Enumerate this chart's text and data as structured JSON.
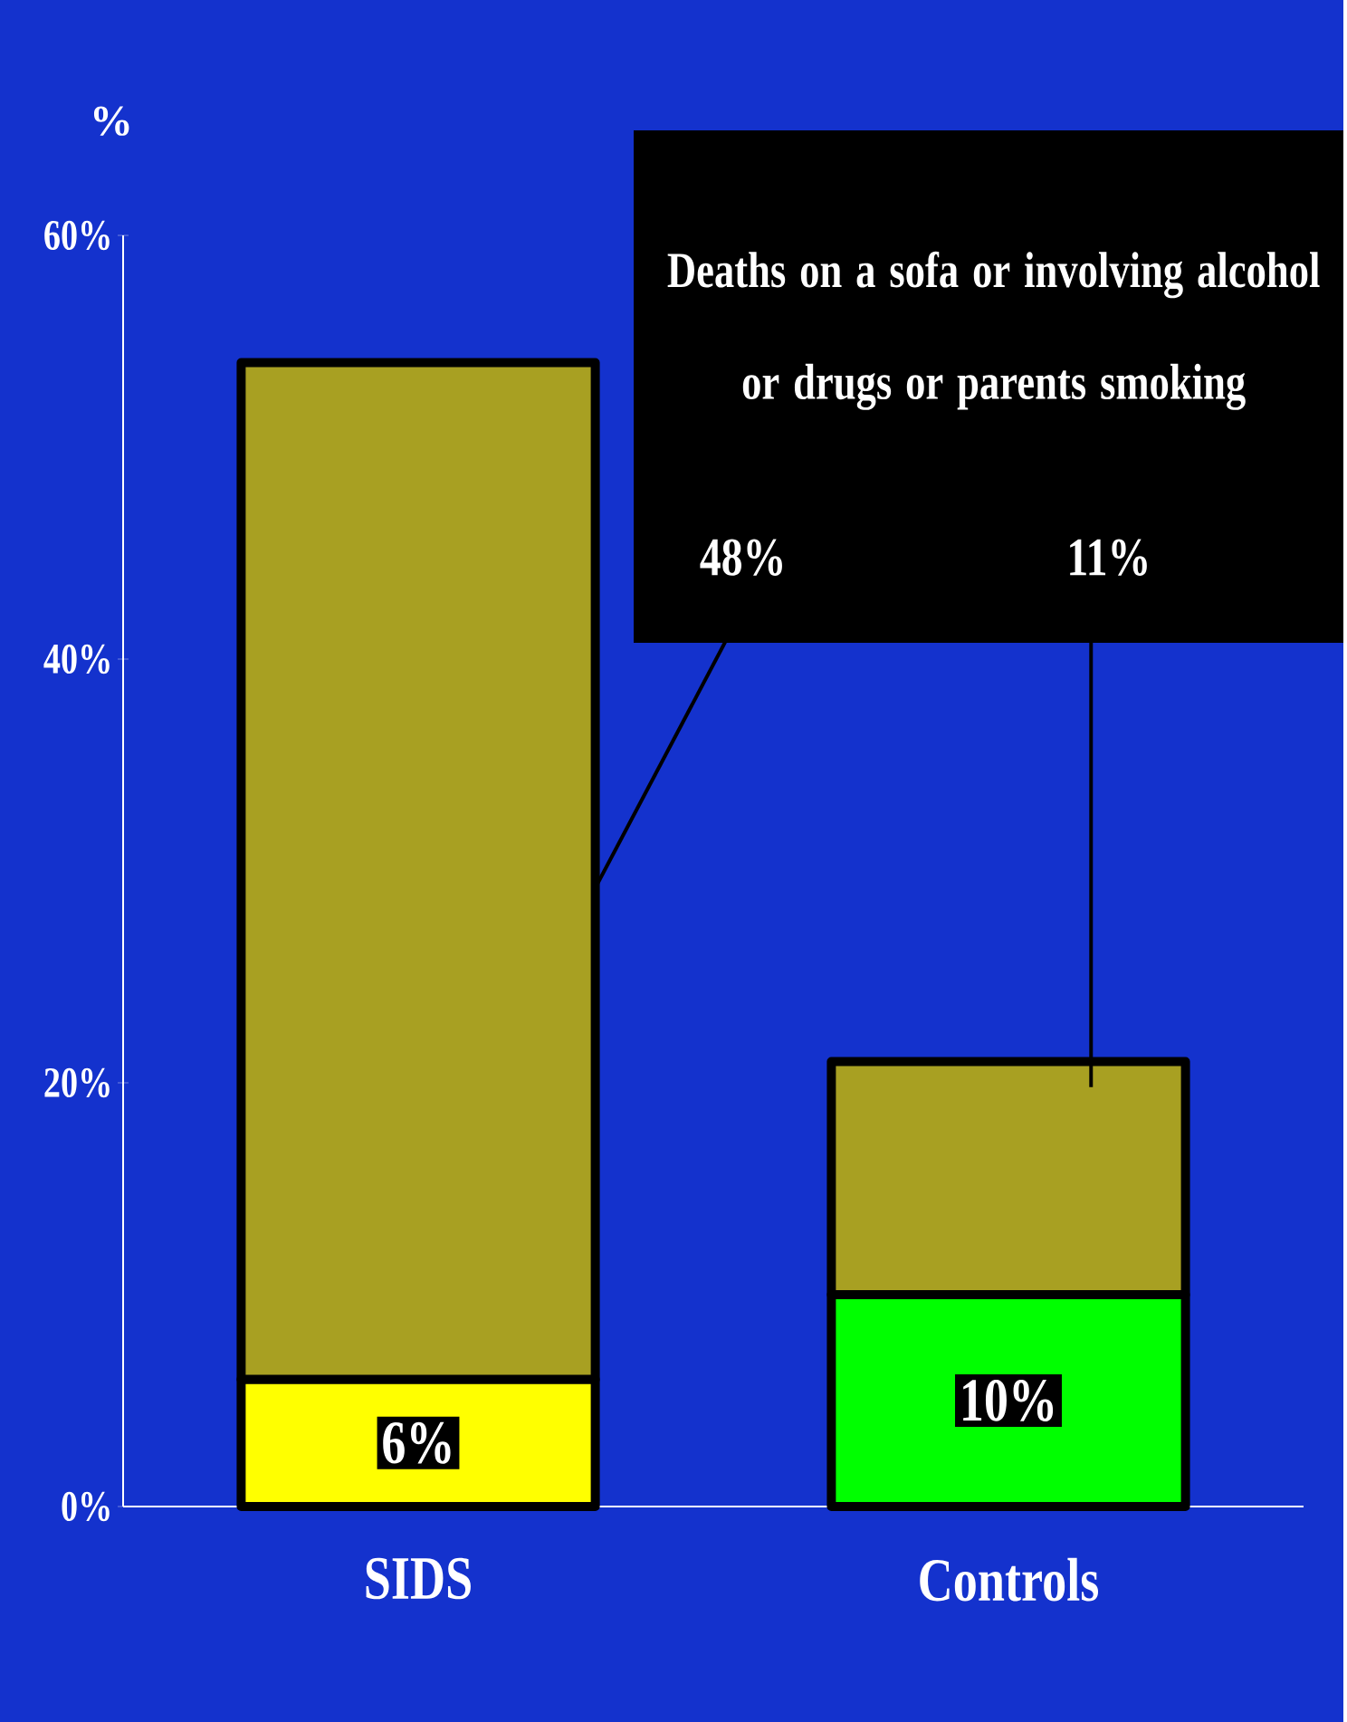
{
  "chart_data": {
    "type": "bar",
    "stacked": true,
    "ylabel": "%",
    "categories": [
      "SIDS",
      "Controls"
    ],
    "series": [
      {
        "colors": [
          "#ffff00",
          "#00ff00"
        ],
        "values": [
          6,
          10
        ],
        "value_labels": [
          "6%",
          "10%"
        ]
      },
      {
        "colors": [
          "#a8a022",
          "#a8a022"
        ],
        "values": [
          48,
          11
        ],
        "value_labels": [
          "48%",
          "11%"
        ]
      }
    ],
    "ylim": [
      0,
      60
    ],
    "yticks": [
      {
        "value": 0,
        "label": "0%"
      },
      {
        "value": 20,
        "label": "20%"
      },
      {
        "value": 40,
        "label": "40%"
      },
      {
        "value": 60,
        "label": "60%"
      }
    ],
    "annotations": [
      "Deaths on a sofa or involving alcohol or drugs or parents smoking"
    ]
  }
}
